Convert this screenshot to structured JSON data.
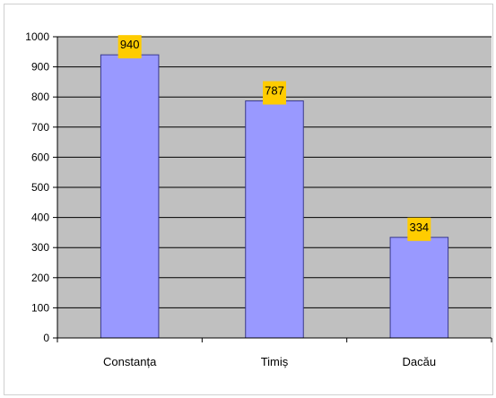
{
  "chart_data": {
    "type": "bar",
    "categories": [
      "Constanța",
      "Timiș",
      "Dacău"
    ],
    "values": [
      940,
      787,
      334
    ],
    "ylim": [
      0,
      1000
    ],
    "yticks": [
      0,
      100,
      200,
      300,
      400,
      500,
      600,
      700,
      800,
      900,
      1000
    ],
    "grid": true,
    "legend": "none",
    "data_labels": [
      "940",
      "787",
      "334"
    ],
    "colors": {
      "bar": "#9999ff",
      "bar_edge": "#3a3a8c",
      "plot_background": "#c0c0c0",
      "gridline": "#000000",
      "label_background": "#ffcc00"
    }
  }
}
